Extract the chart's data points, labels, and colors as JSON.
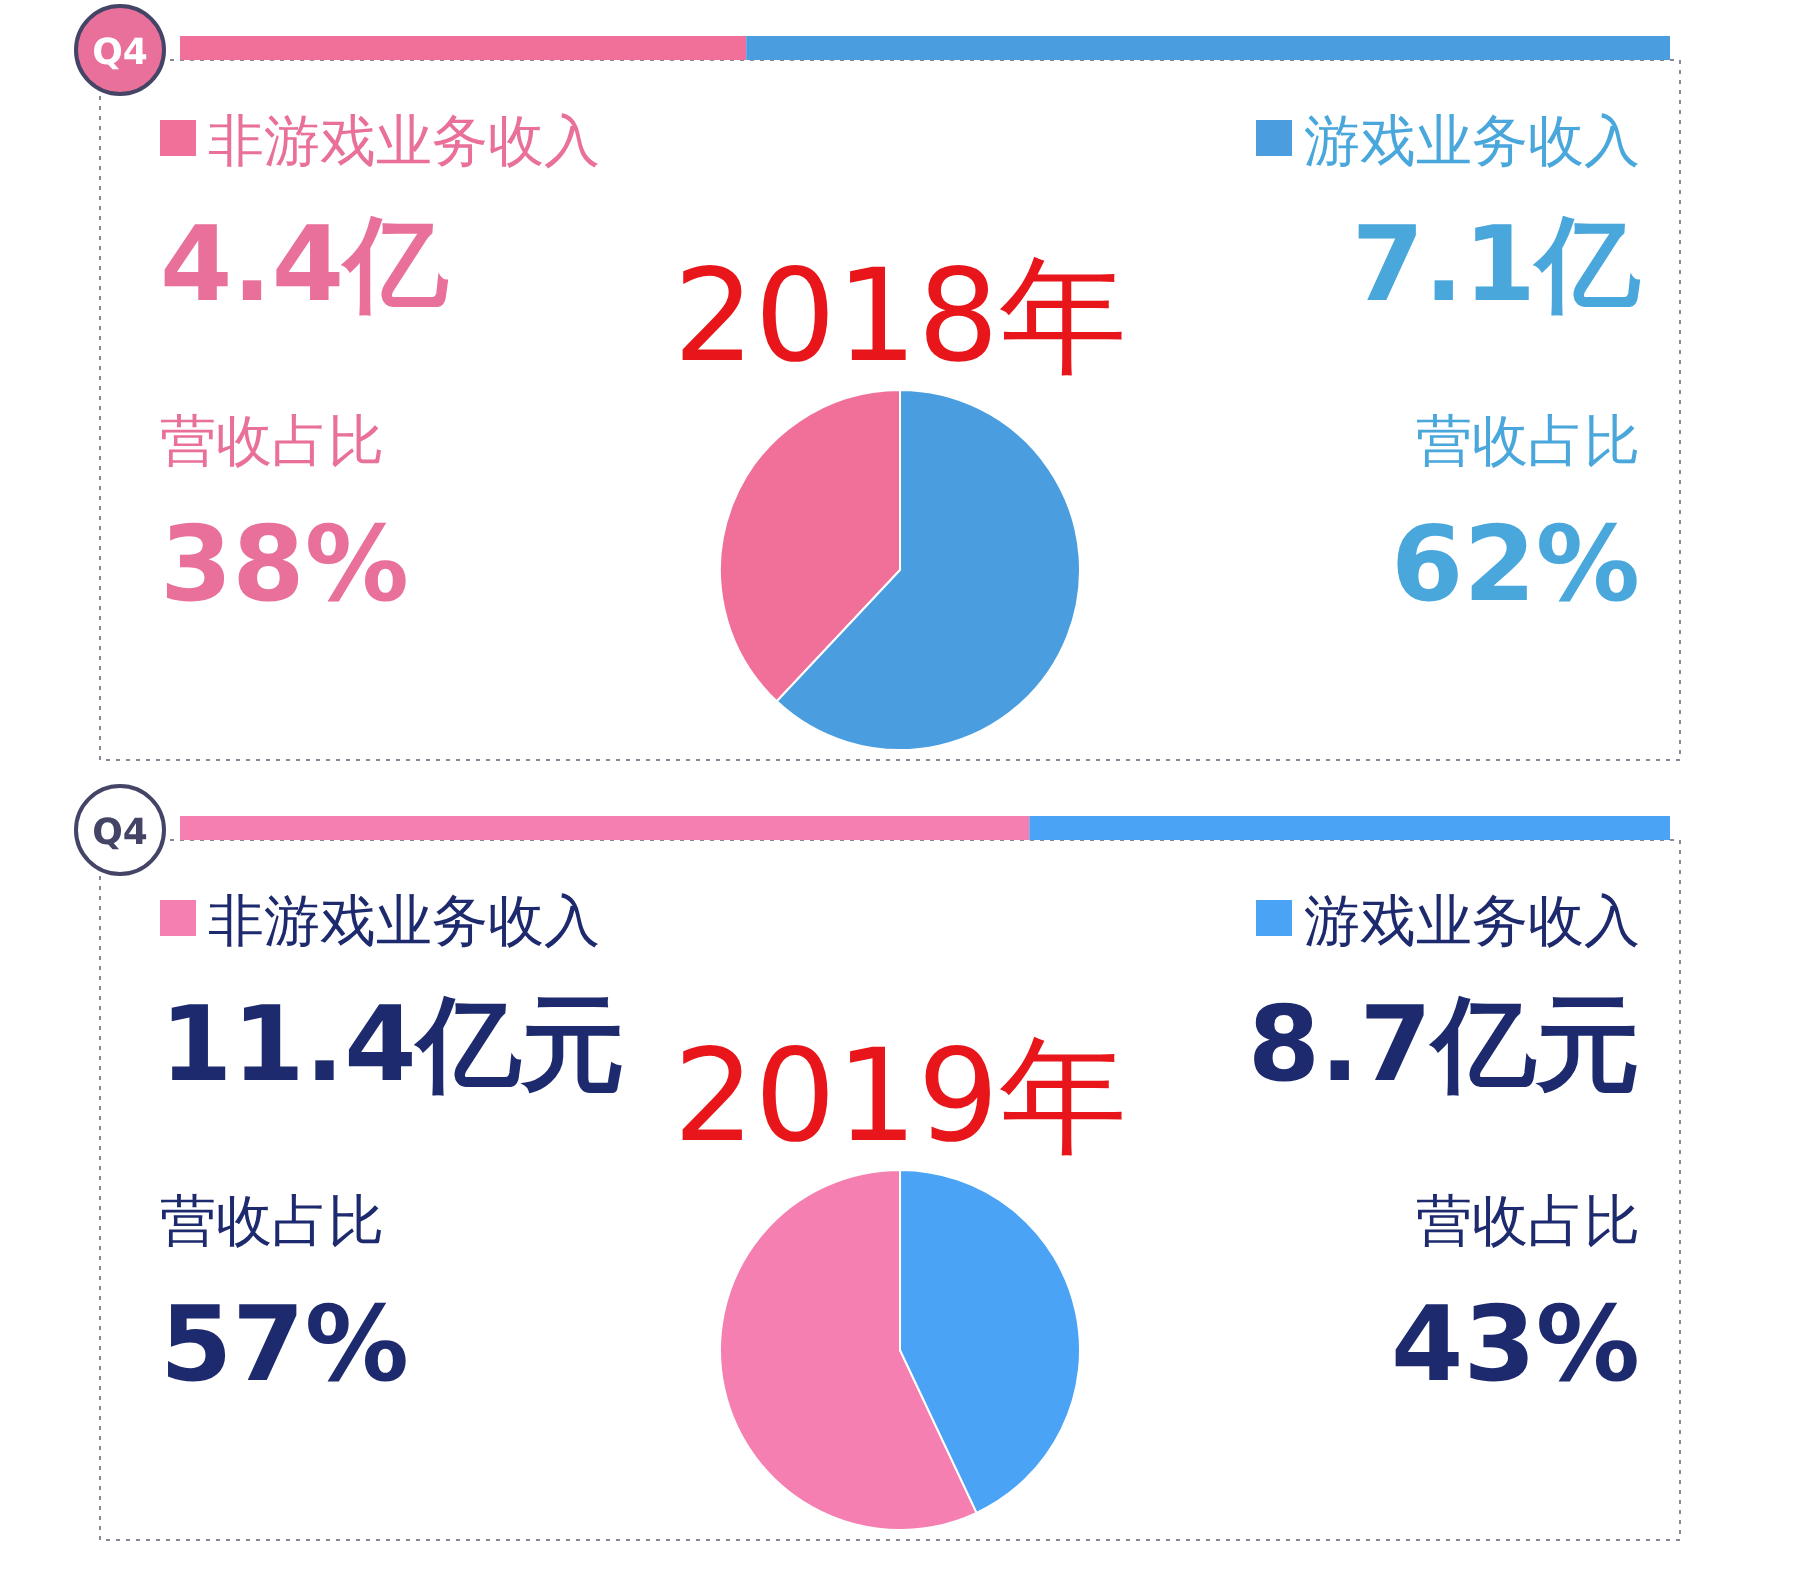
{
  "chart_data": [
    {
      "type": "pie",
      "legend": "top",
      "subtitle": "Q4",
      "title": "2018年",
      "categories": [
        "非游戏业务收入",
        "游戏业务收入"
      ],
      "values": [
        38,
        62
      ],
      "value_labels": [
        "38%",
        "62%"
      ],
      "colors": [
        "#f0709a",
        "#4a9ee0"
      ],
      "annotations": [
        "4.4亿",
        "7.1亿",
        "营收占比",
        "营收占比"
      ]
    },
    {
      "type": "pie",
      "legend": "top",
      "subtitle": "Q4",
      "title": "2019年",
      "categories": [
        "非游戏业务收入",
        "游戏业务收入"
      ],
      "values": [
        57,
        43
      ],
      "value_labels": [
        "57%",
        "43%"
      ],
      "colors": [
        "#f57fb0",
        "#4aa3f5"
      ],
      "annotations": [
        "11.4亿元",
        "8.7亿元",
        "营收占比",
        "营收占比"
      ]
    }
  ]
}
